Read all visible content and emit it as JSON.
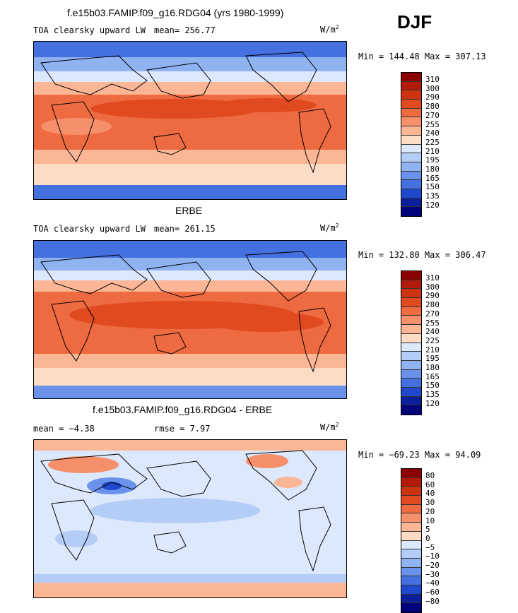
{
  "header": {
    "title": "f.e15b03.FAMIP.f09_g16.RDG04 (yrs 1980-1999)",
    "season": "DJF"
  },
  "panels": [
    {
      "id": "model",
      "title": "",
      "field": "TOA clearsky upward LW",
      "stat_text": "mean= 256.77",
      "units": "W/m",
      "units_exp": "2",
      "minmax": "Min = 144.48 Max = 307.13",
      "colorbar_labels": [
        "310",
        "300",
        "290",
        "280",
        "270",
        "255",
        "240",
        "225",
        "210",
        "195",
        "180",
        "165",
        "150",
        "135",
        "120"
      ]
    },
    {
      "id": "obs",
      "title": "ERBE",
      "field": "TOA clearsky upward LW",
      "stat_text": "mean= 261.15",
      "units": "W/m",
      "units_exp": "2",
      "minmax": "Min = 132.80 Max = 306.47",
      "colorbar_labels": [
        "310",
        "300",
        "290",
        "280",
        "270",
        "255",
        "240",
        "225",
        "210",
        "195",
        "180",
        "165",
        "150",
        "135",
        "120"
      ]
    },
    {
      "id": "diff",
      "title": "f.e15b03.FAMIP.f09_g16.RDG04 - ERBE",
      "mean_text": "mean =  −4.38",
      "rmse_text": "rmse =   7.97",
      "units": "W/m",
      "units_exp": "2",
      "minmax": "Min = −69.23 Max =  94.09",
      "colorbar_labels": [
        "80",
        "60",
        "40",
        "30",
        "20",
        "10",
        "5",
        "0",
        "−5",
        "−10",
        "−20",
        "−30",
        "−40",
        "−60",
        "−80"
      ]
    }
  ],
  "colors": {
    "palette": [
      "#8b0000",
      "#b41a0c",
      "#cc3311",
      "#e04a20",
      "#ee6a40",
      "#f6906a",
      "#fbb696",
      "#fddcc6",
      "#dce8fb",
      "#b4cdf6",
      "#8fb2f0",
      "#6a92ea",
      "#4570e0",
      "#1f48cc",
      "#0a1f99",
      "#02027a"
    ]
  }
}
